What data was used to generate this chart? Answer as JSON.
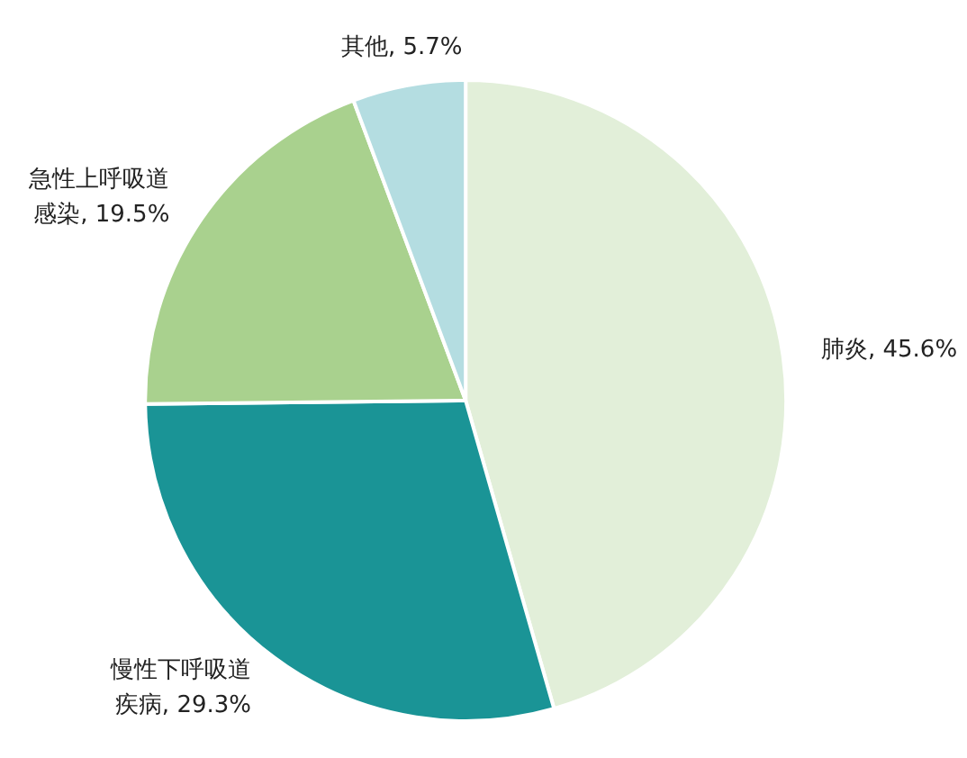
{
  "chart_data": {
    "type": "pie",
    "categories": [
      "肺炎",
      "慢性下呼吸道疾病",
      "急性上呼吸道感染",
      "其他"
    ],
    "values": [
      45.6,
      29.3,
      19.5,
      5.7
    ],
    "colors": [
      "#e2efd9",
      "#1a9496",
      "#a9d18e",
      "#b4dde1"
    ],
    "value_labels": [
      "45.6%",
      "29.3%",
      "19.5%",
      "5.7%"
    ]
  }
}
